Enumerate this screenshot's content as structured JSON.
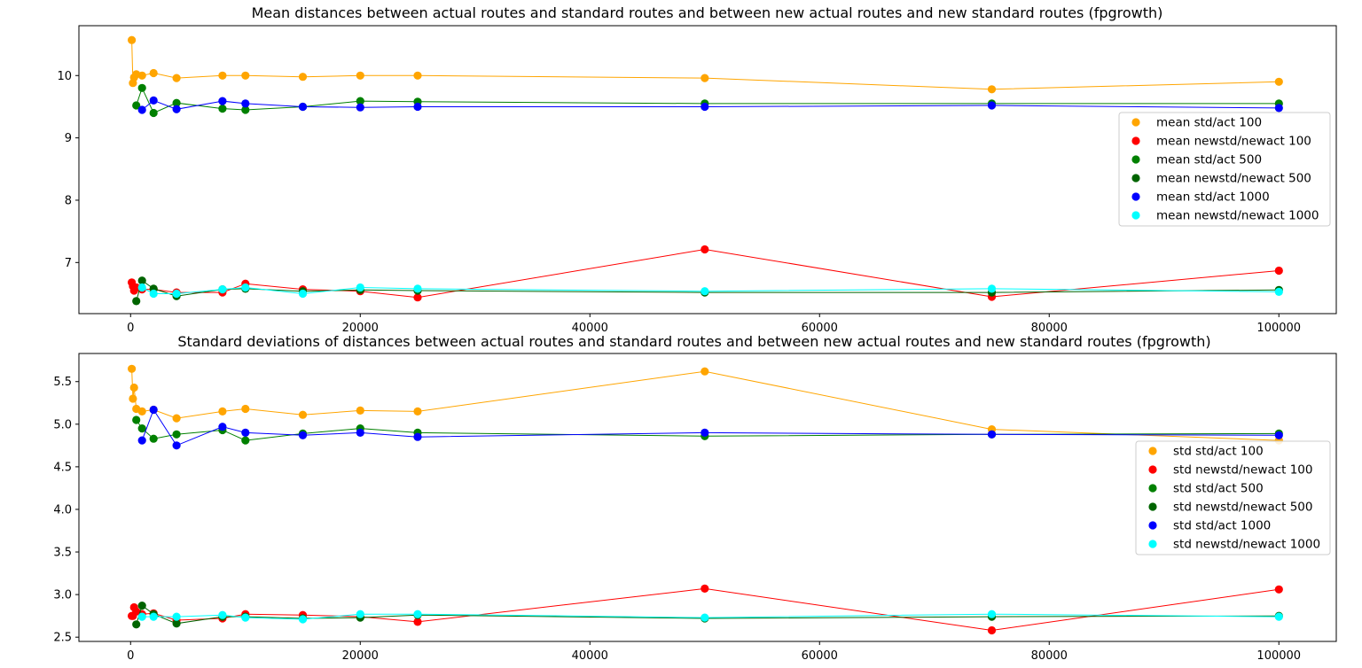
{
  "chart_data": [
    {
      "type": "line",
      "title": "Mean distances between actual routes and standard routes and between new actual routes and new standard routes (fpgrowth)",
      "xlabel": "",
      "ylabel": "",
      "xlim": [
        -4500,
        105000
      ],
      "ylim": [
        6.18,
        10.8
      ],
      "xticks": [
        0,
        20000,
        40000,
        60000,
        80000,
        100000
      ],
      "xtick_labels": [
        "0",
        "20000",
        "40000",
        "60000",
        "80000",
        "100000"
      ],
      "yticks": [
        7,
        8,
        9,
        10
      ],
      "ytick_labels": [
        "7",
        "8",
        "9",
        "10"
      ],
      "grid": false,
      "legend_position": "center-right",
      "x": [
        100,
        200,
        300,
        500,
        1000,
        2000,
        4000,
        8000,
        10000,
        15000,
        20000,
        25000,
        50000,
        75000,
        100000
      ],
      "series": [
        {
          "name": "mean std/act 100",
          "color": "#ffa500",
          "values": [
            10.57,
            9.88,
            9.97,
            10.02,
            10.0,
            10.04,
            9.96,
            10.0,
            10.0,
            9.98,
            10.0,
            10.0,
            9.96,
            9.78,
            9.9
          ]
        },
        {
          "name": "mean newstd/newact 100",
          "color": "#ff0000",
          "values": [
            6.68,
            6.62,
            6.55,
            6.6,
            6.57,
            6.57,
            6.52,
            6.52,
            6.66,
            6.57,
            6.54,
            6.44,
            7.21,
            6.45,
            6.87
          ]
        },
        {
          "name": "mean std/act 500",
          "color": "#008000",
          "values": [
            null,
            null,
            null,
            9.52,
            9.8,
            9.4,
            9.56,
            9.47,
            9.45,
            9.5,
            9.59,
            9.58,
            9.55,
            9.55,
            9.55
          ]
        },
        {
          "name": "mean newstd/newact 500",
          "color": "#006400",
          "values": [
            null,
            null,
            null,
            6.38,
            6.71,
            6.58,
            6.46,
            6.57,
            6.58,
            6.54,
            6.56,
            6.55,
            6.52,
            6.52,
            6.56
          ]
        },
        {
          "name": "mean std/act 1000",
          "color": "#0000ff",
          "values": [
            null,
            null,
            null,
            null,
            9.45,
            9.6,
            9.46,
            9.59,
            9.55,
            9.5,
            9.49,
            9.5,
            9.5,
            9.52,
            9.48
          ]
        },
        {
          "name": "mean newstd/newact 1000",
          "color": "#00ffff",
          "values": [
            null,
            null,
            null,
            null,
            6.6,
            6.5,
            6.5,
            6.57,
            6.6,
            6.5,
            6.6,
            6.58,
            6.54,
            6.58,
            6.53
          ]
        }
      ]
    },
    {
      "type": "line",
      "title": "Standard deviations of distances between actual routes and standard routes and between new actual routes and new standard routes (fpgrowth)",
      "xlabel": "",
      "ylabel": "",
      "xlim": [
        -4500,
        105000
      ],
      "ylim": [
        2.45,
        5.83
      ],
      "xticks": [
        0,
        20000,
        40000,
        60000,
        80000,
        100000
      ],
      "xtick_labels": [
        "0",
        "20000",
        "40000",
        "60000",
        "80000",
        "100000"
      ],
      "yticks": [
        2.5,
        3.0,
        3.5,
        4.0,
        4.5,
        5.0,
        5.5
      ],
      "ytick_labels": [
        "2.5",
        "3.0",
        "3.5",
        "4.0",
        "4.5",
        "5.0",
        "5.5"
      ],
      "grid": false,
      "legend_position": "center-right",
      "x": [
        100,
        200,
        300,
        500,
        1000,
        2000,
        4000,
        8000,
        10000,
        15000,
        20000,
        25000,
        50000,
        75000,
        100000
      ],
      "series": [
        {
          "name": "std std/act 100",
          "color": "#ffa500",
          "values": [
            5.65,
            5.3,
            5.43,
            5.18,
            5.15,
            5.17,
            5.07,
            5.15,
            5.18,
            5.11,
            5.16,
            5.15,
            5.62,
            4.94,
            4.81
          ]
        },
        {
          "name": "std newstd/newact 100",
          "color": "#ff0000",
          "values": [
            2.75,
            2.75,
            2.85,
            2.8,
            2.77,
            2.78,
            2.7,
            2.72,
            2.77,
            2.76,
            2.74,
            2.68,
            3.07,
            2.58,
            3.06
          ]
        },
        {
          "name": "std std/act 500",
          "color": "#008000",
          "values": [
            null,
            null,
            null,
            5.05,
            4.95,
            4.83,
            4.88,
            4.93,
            4.81,
            4.89,
            4.95,
            4.9,
            4.86,
            4.88,
            4.89
          ]
        },
        {
          "name": "std newstd/newact 500",
          "color": "#006400",
          "values": [
            null,
            null,
            null,
            2.65,
            2.87,
            2.77,
            2.66,
            2.74,
            2.74,
            2.72,
            2.73,
            2.76,
            2.72,
            2.74,
            2.75
          ]
        },
        {
          "name": "std std/act 1000",
          "color": "#0000ff",
          "values": [
            null,
            null,
            null,
            null,
            4.81,
            5.17,
            4.75,
            4.97,
            4.9,
            4.87,
            4.9,
            4.85,
            4.9,
            4.88,
            4.87
          ]
        },
        {
          "name": "std newstd/newact 1000",
          "color": "#00ffff",
          "values": [
            null,
            null,
            null,
            null,
            2.74,
            2.74,
            2.74,
            2.76,
            2.73,
            2.71,
            2.77,
            2.77,
            2.73,
            2.77,
            2.74
          ]
        }
      ]
    }
  ]
}
